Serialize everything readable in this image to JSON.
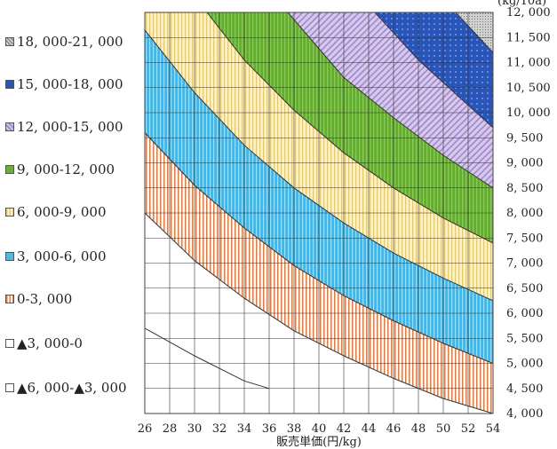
{
  "chart_data": {
    "type": "area",
    "title": "",
    "xlabel": "販売単価(円/kg)",
    "ylabel": "(kg/10a)",
    "xlim": [
      26,
      54
    ],
    "ylim": [
      4000,
      12000
    ],
    "x_ticks": [
      "26",
      "28",
      "30",
      "32",
      "34",
      "36",
      "38",
      "40",
      "42",
      "44",
      "46",
      "48",
      "50",
      "52",
      "54"
    ],
    "y_ticks": [
      "4, 000",
      "4, 500",
      "5, 000",
      "5, 500",
      "6, 000",
      "6, 500",
      "7, 000",
      "7, 500",
      "8, 000",
      "8, 500",
      "9, 000",
      "9, 500",
      "10, 000",
      "10, 500",
      "11, 000",
      "11, 500",
      "12, 000"
    ],
    "grid": true,
    "legend_position": "left",
    "boundaries": [
      {
        "name": "▲3, 000",
        "x": [
          26,
          30,
          34,
          36
        ],
        "y": [
          5700,
          5150,
          4650,
          4500
        ]
      },
      {
        "name": "0",
        "x": [
          26,
          30,
          34,
          38,
          42,
          46,
          50,
          54
        ],
        "y": [
          8000,
          7050,
          6300,
          5650,
          5150,
          4700,
          4300,
          4000
        ]
      },
      {
        "name": "3, 000",
        "x": [
          26,
          30,
          34,
          38,
          42,
          46,
          50,
          54
        ],
        "y": [
          9600,
          8550,
          7700,
          6950,
          6350,
          5850,
          5400,
          5000
        ]
      },
      {
        "name": "6, 000",
        "x": [
          26,
          30,
          34,
          38,
          42,
          46,
          50,
          54
        ],
        "y": [
          11650,
          10400,
          9350,
          8500,
          7800,
          7200,
          6700,
          6250
        ]
      },
      {
        "name": "9, 000",
        "x": [
          31,
          34,
          38,
          42,
          46,
          50,
          54
        ],
        "y": [
          12000,
          11050,
          10050,
          9200,
          8500,
          7900,
          7400
        ]
      },
      {
        "name": "12, 000",
        "x": [
          37.5,
          42,
          46,
          50,
          54
        ],
        "y": [
          12000,
          10700,
          9900,
          9150,
          8500
        ]
      },
      {
        "name": "15, 000",
        "x": [
          44.5,
          48,
          52,
          54
        ],
        "y": [
          12000,
          11050,
          10150,
          9700
        ]
      },
      {
        "name": "18, 000",
        "x": [
          51,
          54
        ],
        "y": [
          12000,
          11200
        ]
      }
    ],
    "series": [
      {
        "name": "18, 000-21, 000",
        "color": "#9a9a9a"
      },
      {
        "name": "15, 000-18, 000",
        "color": "#2a55b8"
      },
      {
        "name": "12, 000-15, 000",
        "color": "#c7b4e6"
      },
      {
        "name": "9, 000-12, 000",
        "color": "#66b032"
      },
      {
        "name": "6, 000-9, 000",
        "color": "#ffeaa0"
      },
      {
        "name": "3, 000-6, 000",
        "color": "#48bde8"
      },
      {
        "name": "0-3, 000",
        "color": "#f3b48a"
      },
      {
        "name": "▲3, 000-0",
        "color": "#ffffff"
      },
      {
        "name": "▲6, 000-▲3, 000",
        "color": "#ffffff"
      }
    ]
  }
}
